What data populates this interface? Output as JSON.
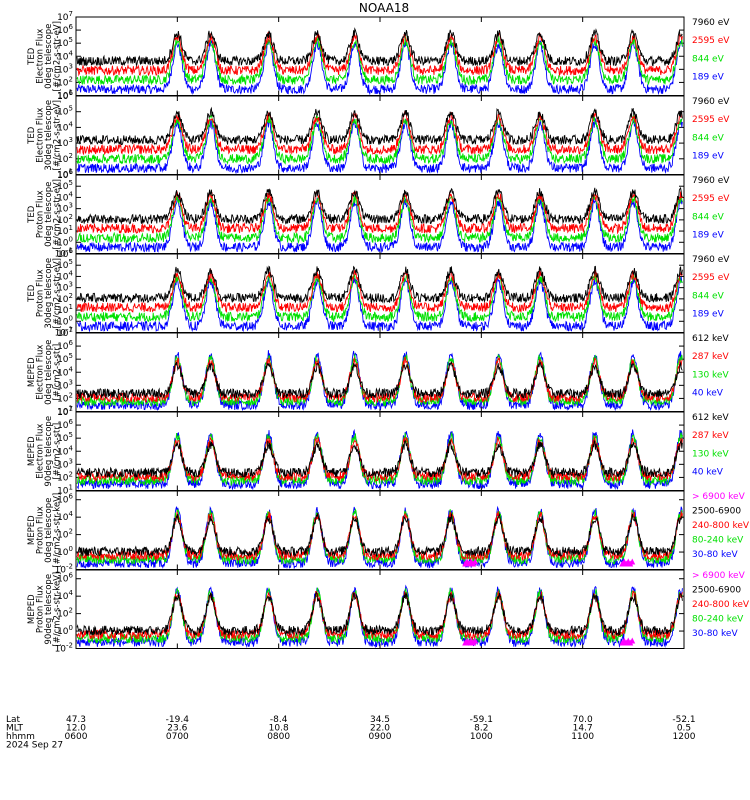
{
  "title": "NOAA18",
  "chart_data": {
    "type": "line",
    "title": "NOAA18",
    "date": "2024 Sep 27",
    "footer_row_labels": [
      "Lat",
      "MLT",
      "hhmm"
    ],
    "time_axis": {
      "range": [
        "06:00",
        "12:00"
      ],
      "ticks": [
        {
          "lat": "47.3",
          "mlt": "12.0",
          "hhmm": "0600"
        },
        {
          "lat": "-19.4",
          "mlt": "23.6",
          "hhmm": "0700"
        },
        {
          "lat": "-8.4",
          "mlt": "10.8",
          "hhmm": "0800"
        },
        {
          "lat": "34.5",
          "mlt": "22.0",
          "hhmm": "0900"
        },
        {
          "lat": "-59.1",
          "mlt": "8.2",
          "hhmm": "1000"
        },
        {
          "lat": "70.0",
          "mlt": "14.7",
          "hhmm": "1100"
        },
        {
          "lat": "-52.1",
          "mlt": "0.5",
          "hhmm": "1200"
        }
      ]
    },
    "passes_hours": [
      7.0,
      7.33,
      7.9,
      8.38,
      8.75,
      9.25,
      9.7,
      10.17,
      10.58,
      11.12,
      11.5,
      11.97
    ],
    "panels": [
      {
        "ylabel": [
          "TED",
          "Electron Flux",
          "0deg telescope",
          "[#/cm2-s-str-eV]"
        ],
        "log_range": [
          1,
          7
        ],
        "tick_exps": [
          1,
          2,
          3,
          4,
          5,
          6,
          7
        ],
        "series": [
          {
            "name": "7960 eV",
            "color": "#000000"
          },
          {
            "name": "2595 eV",
            "color": "#ff0000"
          },
          {
            "name": "844 eV",
            "color": "#00e000"
          },
          {
            "name": "189 eV",
            "color": "#0000ff"
          }
        ]
      },
      {
        "ylabel": [
          "TED",
          "Electron Flux",
          "30deg telescope",
          "[#/cm2-s-str-eV]"
        ],
        "log_range": [
          1,
          6
        ],
        "tick_exps": [
          1,
          2,
          3,
          4,
          5,
          6
        ],
        "series": [
          {
            "name": "7960 eV",
            "color": "#000000"
          },
          {
            "name": "2595 eV",
            "color": "#ff0000"
          },
          {
            "name": "844 eV",
            "color": "#00e000"
          },
          {
            "name": "189 eV",
            "color": "#0000ff"
          }
        ]
      },
      {
        "ylabel": [
          "TED",
          "Proton Flux",
          "0deg telescope",
          "[#/cm2-s-str-eV]"
        ],
        "log_range": [
          -1,
          6
        ],
        "tick_exps": [
          -1,
          0,
          1,
          2,
          3,
          4,
          5,
          6
        ],
        "series": [
          {
            "name": "7960 eV",
            "color": "#000000"
          },
          {
            "name": "2595 eV",
            "color": "#ff0000"
          },
          {
            "name": "844 eV",
            "color": "#00e000"
          },
          {
            "name": "189 eV",
            "color": "#0000ff"
          }
        ]
      },
      {
        "ylabel": [
          "TED",
          "Proton Flux",
          "30deg telescope",
          "[#/cm2-s-str-eV]"
        ],
        "log_range": [
          -1,
          6
        ],
        "tick_exps": [
          -1,
          0,
          1,
          2,
          3,
          4,
          5,
          6
        ],
        "series": [
          {
            "name": "7960 eV",
            "color": "#000000"
          },
          {
            "name": "2595 eV",
            "color": "#ff0000"
          },
          {
            "name": "844 eV",
            "color": "#00e000"
          },
          {
            "name": "189 eV",
            "color": "#0000ff"
          }
        ]
      },
      {
        "ylabel": [
          "MEPED",
          "Electron Flux",
          "0deg telescope",
          "[#/cm2-s-str]"
        ],
        "log_range": [
          1,
          7
        ],
        "tick_exps": [
          1,
          2,
          3,
          4,
          5,
          6,
          7
        ],
        "series": [
          {
            "name": "612 keV",
            "color": "#000000"
          },
          {
            "name": "287 keV",
            "color": "#ff0000"
          },
          {
            "name": "130 keV",
            "color": "#00e000"
          },
          {
            "name": "40 keV",
            "color": "#0000ff"
          }
        ]
      },
      {
        "ylabel": [
          "MEPED",
          "Electron Flux",
          "90deg telescope",
          "[#/cm2-s-str]"
        ],
        "log_range": [
          1,
          7
        ],
        "tick_exps": [
          1,
          2,
          3,
          4,
          5,
          6,
          7
        ],
        "series": [
          {
            "name": "612 keV",
            "color": "#000000"
          },
          {
            "name": "287 keV",
            "color": "#ff0000"
          },
          {
            "name": "130 keV",
            "color": "#00e000"
          },
          {
            "name": "40 keV",
            "color": "#0000ff"
          }
        ]
      },
      {
        "ylabel": [
          "MEPED",
          "Proton Flux",
          "0deg telescope",
          "[#/cm2-s-str-keV]"
        ],
        "log_range": [
          -2,
          7
        ],
        "tick_exps": [
          -2,
          0,
          2,
          4,
          6
        ],
        "series": [
          {
            "name": "> 6900 keV",
            "color": "#ff00ff"
          },
          {
            "name": "2500-6900",
            "color": "#000000"
          },
          {
            "name": "240-800 keV",
            "color": "#ff0000"
          },
          {
            "name": "80-240 keV",
            "color": "#00e000"
          },
          {
            "name": "30-80 keV",
            "color": "#0000ff"
          }
        ]
      },
      {
        "ylabel": [
          "MEPED",
          "Proton Flux",
          "90deg telescope",
          "[#/cm2-s-str-keV]"
        ],
        "log_range": [
          -2,
          7
        ],
        "tick_exps": [
          -2,
          0,
          2,
          4,
          6
        ],
        "series": [
          {
            "name": "> 6900 keV",
            "color": "#ff00ff"
          },
          {
            "name": "2500-6900",
            "color": "#000000"
          },
          {
            "name": "240-800 keV",
            "color": "#ff0000"
          },
          {
            "name": "80-240 keV",
            "color": "#00e000"
          },
          {
            "name": "30-80 keV",
            "color": "#0000ff"
          }
        ]
      }
    ]
  }
}
